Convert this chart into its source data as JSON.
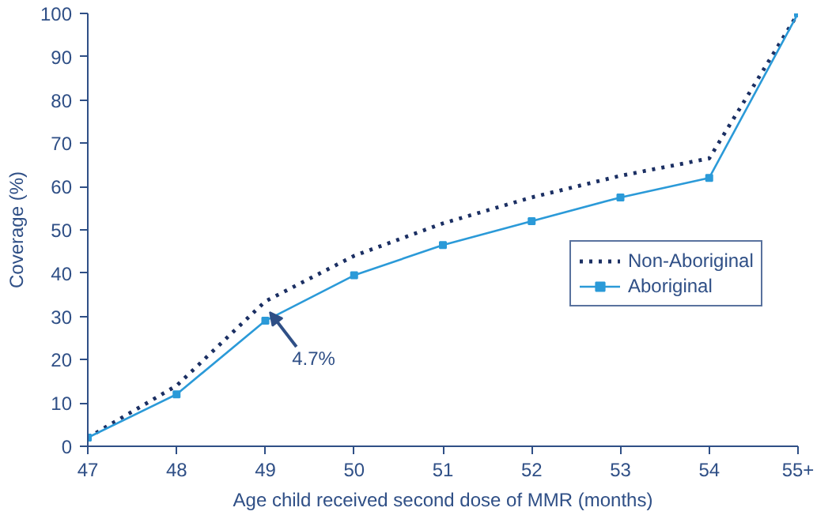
{
  "chart_data": {
    "type": "line",
    "xlabel": "Age child received second dose of MMR (months)",
    "ylabel": "Coverage (%)",
    "x": [
      47,
      48,
      49,
      50,
      51,
      52,
      53,
      54,
      55
    ],
    "xlim": [
      47,
      55
    ],
    "xticks": [
      47,
      48,
      49,
      50,
      51,
      52,
      53,
      54,
      {
        "value": 55,
        "label": "55+"
      }
    ],
    "ylim": [
      0,
      100
    ],
    "yticks": [
      0,
      10,
      20,
      30,
      40,
      50,
      60,
      70,
      80,
      90,
      100
    ],
    "grid": false,
    "legend": "right",
    "series": [
      {
        "name": "Non-Aboriginal",
        "color": "#1b2f63",
        "line_style": "dotted",
        "marker": "none",
        "values": [
          2,
          14,
          33.5,
          44,
          51.5,
          57.5,
          62.5,
          66.5,
          100
        ]
      },
      {
        "name": "Aboriginal",
        "color": "#2b9ad8",
        "line_style": "solid",
        "marker": "square",
        "values": [
          2,
          12,
          29,
          39.5,
          46.5,
          52,
          57.5,
          62,
          100
        ]
      }
    ],
    "annotations": [
      {
        "text": "4.7%",
        "x": 49,
        "y": 31
      }
    ]
  }
}
